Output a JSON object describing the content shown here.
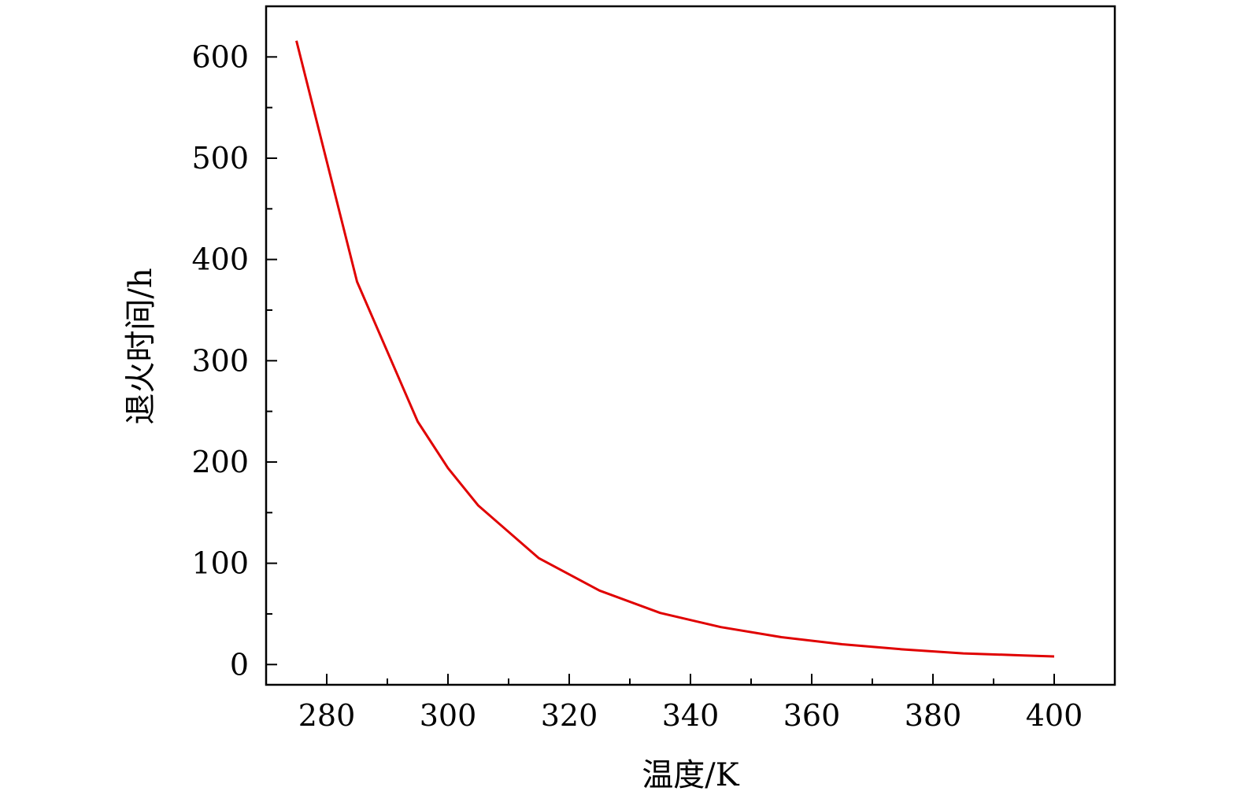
{
  "chart_data": {
    "type": "line",
    "title": "",
    "xlabel": "温度/K",
    "ylabel": "退火时间/h",
    "xlim": [
      270,
      410
    ],
    "ylim": [
      -20,
      650
    ],
    "x_ticks": [
      280,
      300,
      320,
      340,
      360,
      380,
      400
    ],
    "y_ticks": [
      0,
      100,
      200,
      300,
      400,
      500,
      600
    ],
    "grid": false,
    "series": [
      {
        "color": "#e00000",
        "x": [
          275,
          285,
          295,
          300,
          305,
          315,
          325,
          335,
          345,
          355,
          365,
          375,
          385,
          395,
          400
        ],
        "y": [
          616,
          378,
          240,
          194,
          157,
          105,
          73,
          51,
          37,
          27,
          20,
          15,
          11,
          9,
          8
        ]
      }
    ]
  }
}
